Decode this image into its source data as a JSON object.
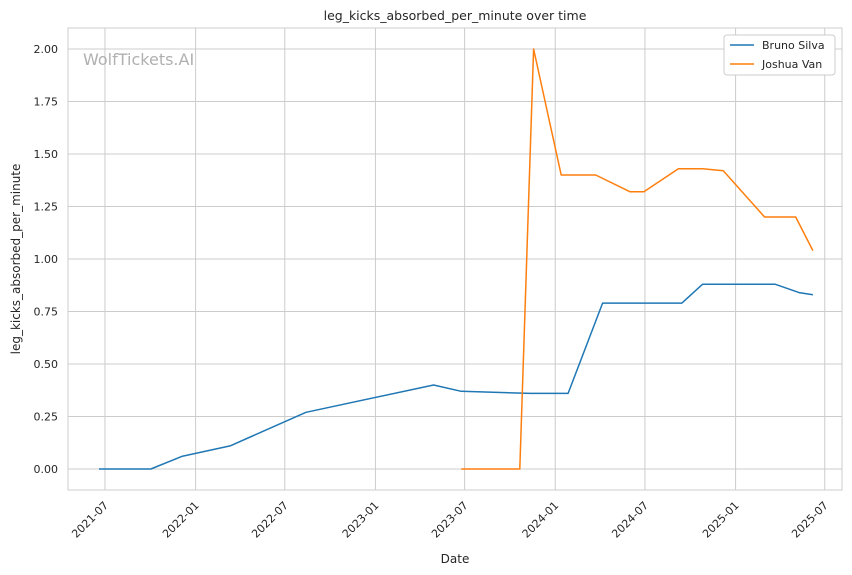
{
  "chart_data": {
    "type": "line",
    "title": "leg_kicks_absorbed_per_minute over time",
    "xlabel": "Date",
    "ylabel": "leg_kicks_absorbed_per_minute",
    "watermark": "WolfTickets.AI",
    "x_ticks": [
      "2021-07",
      "2022-01",
      "2022-07",
      "2023-01",
      "2023-07",
      "2024-01",
      "2024-07",
      "2025-01",
      "2025-07"
    ],
    "y_ticks": [
      "0.00",
      "0.25",
      "0.50",
      "0.75",
      "1.00",
      "1.25",
      "1.50",
      "1.75",
      "2.00"
    ],
    "xlim": [
      "2021-04-17",
      "2025-08-05"
    ],
    "ylim": [
      -0.1,
      2.1
    ],
    "grid": true,
    "legend_position": "upper right",
    "series": [
      {
        "name": "Bruno Silva",
        "color": "#1f77b4",
        "points": [
          [
            "2021-06-19",
            0.0
          ],
          [
            "2021-10-02",
            0.0
          ],
          [
            "2021-12-04",
            0.06
          ],
          [
            "2022-03-12",
            0.11
          ],
          [
            "2022-08-13",
            0.27
          ],
          [
            "2023-04-29",
            0.4
          ],
          [
            "2023-06-24",
            0.37
          ],
          [
            "2023-11-11",
            0.36
          ],
          [
            "2024-01-27",
            0.36
          ],
          [
            "2024-04-06",
            0.79
          ],
          [
            "2024-09-14",
            0.79
          ],
          [
            "2024-10-26",
            0.88
          ],
          [
            "2025-03-22",
            0.88
          ],
          [
            "2025-05-10",
            0.84
          ],
          [
            "2025-06-07",
            0.83
          ]
        ]
      },
      {
        "name": "Joshua Van",
        "color": "#ff7f0e",
        "points": [
          [
            "2023-06-24",
            0.0
          ],
          [
            "2023-10-21",
            0.0
          ],
          [
            "2023-11-18",
            2.0
          ],
          [
            "2024-01-13",
            1.4
          ],
          [
            "2024-03-23",
            1.4
          ],
          [
            "2024-06-01",
            1.32
          ],
          [
            "2024-06-29",
            1.32
          ],
          [
            "2024-09-07",
            1.43
          ],
          [
            "2024-10-26",
            1.43
          ],
          [
            "2024-12-07",
            1.42
          ],
          [
            "2025-03-01",
            1.2
          ],
          [
            "2025-05-03",
            1.2
          ],
          [
            "2025-06-07",
            1.04
          ]
        ]
      }
    ]
  }
}
